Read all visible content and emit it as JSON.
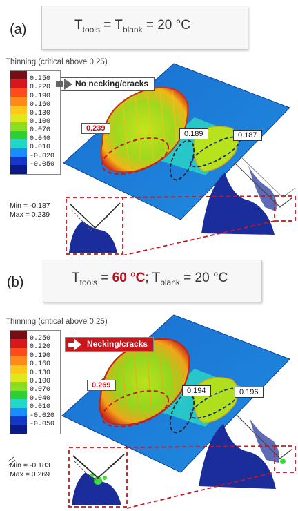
{
  "panel_a": {
    "label": "(a)",
    "temp_parts": [
      {
        "t": "T",
        "sub": "tools",
        "hot": false
      },
      {
        "t": " = T",
        "sub": "blank",
        "hot": false
      },
      {
        "t": " = 20 °C",
        "sub": "",
        "hot": false
      }
    ],
    "legend_title": "Thinning  (critical above  0.25)",
    "legend_values": [
      "0.250",
      "0.220",
      "0.190",
      "0.160",
      "0.130",
      "0.100",
      "0.070",
      "0.040",
      "0.010",
      "-0.020",
      "-0.050"
    ],
    "min_label": "Min = -0.187",
    "max_label": "Max =  0.239",
    "callout": "No necking/cracks",
    "values": {
      "left": "0.239",
      "mid": "0.189",
      "right": "0.187"
    }
  },
  "panel_b": {
    "label": "(b)",
    "temp_parts": [
      {
        "t": "T",
        "sub": "tools",
        "hot": false
      },
      {
        "t": " = ",
        "sub": "",
        "hot": false
      },
      {
        "t": "60 °C",
        "sub": "",
        "hot": true
      },
      {
        "t": "; T",
        "sub": "blank",
        "hot": false
      },
      {
        "t": " = 20 °C",
        "sub": "",
        "hot": false
      }
    ],
    "legend_title": "Thinning  (critical above  0.25)",
    "legend_values": [
      "0.250",
      "0.220",
      "0.190",
      "0.160",
      "0.130",
      "0.100",
      "0.070",
      "0.040",
      "0.010",
      "-0.020",
      "-0.050"
    ],
    "min_label": "Min = -0.183",
    "max_label": "Max =  0.269",
    "callout": "Necking/cracks",
    "values": {
      "left": "0.269",
      "mid": "0.194",
      "right": "0.196"
    }
  },
  "colors": {
    "scale": [
      "#7a0c14",
      "#d8161d",
      "#ff4a1c",
      "#ff8a1a",
      "#ffc61a",
      "#dfe81c",
      "#8cdc1f",
      "#2fcf32",
      "#22d6c8",
      "#1a8cff",
      "#1537c8",
      "#0a1a8a"
    ],
    "thermo_cold": "#1f6fc0",
    "thermo_hot": "#b3141b",
    "highlight": "#c8161d"
  }
}
